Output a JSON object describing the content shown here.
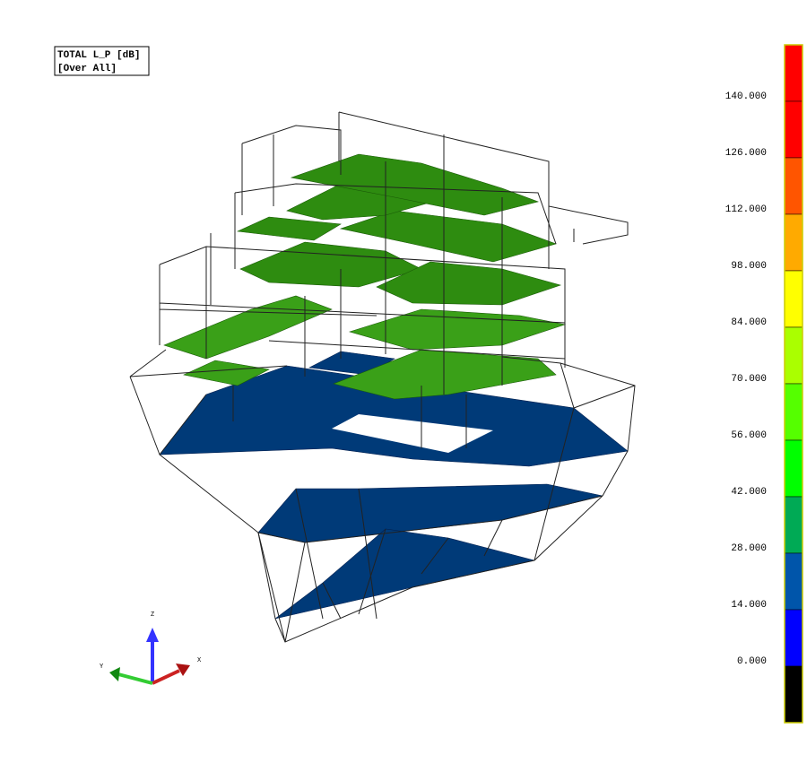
{
  "legend": {
    "title": "TOTAL L_P [dB]",
    "subtitle": "[Over All]"
  },
  "colorbar": {
    "labels": [
      "140.000",
      "126.000",
      "112.000",
      "98.000",
      "84.000",
      "70.000",
      "56.000",
      "42.000",
      "28.000",
      "14.000",
      "0.000"
    ],
    "colors": [
      "#ff0000",
      "#ff0000",
      "#ff5500",
      "#ffaa00",
      "#ffff00",
      "#aaff00",
      "#55ff00",
      "#00ff00",
      "#00aa55",
      "#0055aa",
      "#0000ff",
      "#000000"
    ]
  },
  "triad": {
    "z": "Z",
    "x": "X",
    "y": "Y"
  }
}
